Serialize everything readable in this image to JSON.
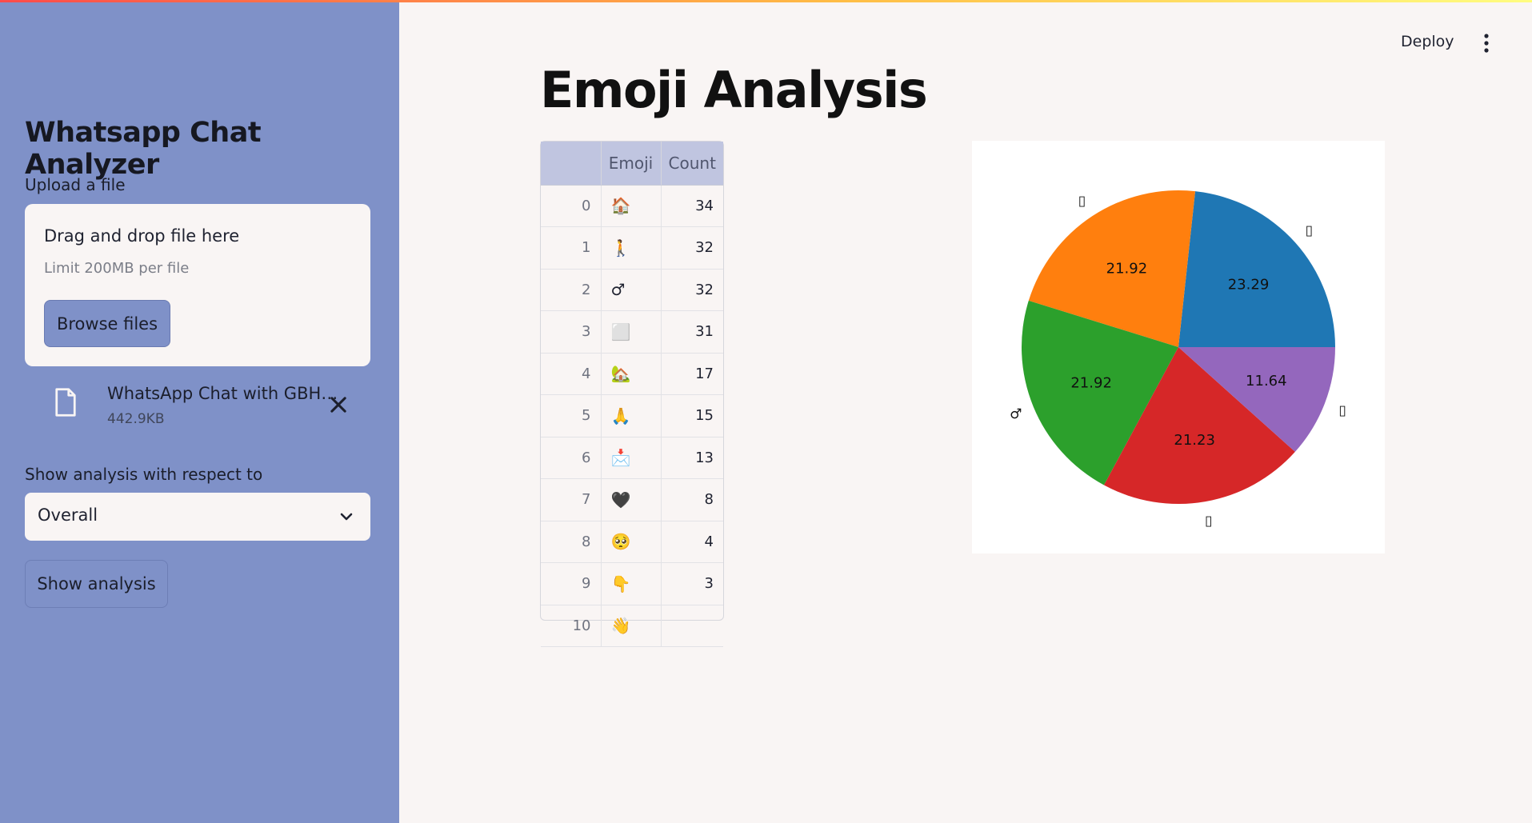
{
  "sidebar": {
    "title": "Whatsapp Chat Analyzer",
    "upload_label": "Upload a file",
    "dropzone_main": "Drag and drop file here",
    "dropzone_sub": "Limit 200MB per file",
    "browse_label": "Browse files",
    "file": {
      "name": "WhatsApp Chat with GBH…",
      "size": "442.9KB"
    },
    "select_label": "Show analysis with respect to",
    "select_value": "Overall",
    "show_button": "Show analysis"
  },
  "header": {
    "deploy": "Deploy"
  },
  "main": {
    "title": "Emoji Analysis",
    "table": {
      "columns": [
        "",
        "Emoji",
        "Count"
      ],
      "rows": [
        {
          "idx": "0",
          "emoji": "🏠",
          "count": "34"
        },
        {
          "idx": "1",
          "emoji": "🚶",
          "count": "32"
        },
        {
          "idx": "2",
          "emoji": "♂",
          "count": "32"
        },
        {
          "idx": "3",
          "emoji": "⬜",
          "count": "31"
        },
        {
          "idx": "4",
          "emoji": "🏡",
          "count": "17"
        },
        {
          "idx": "5",
          "emoji": "🙏",
          "count": "15"
        },
        {
          "idx": "6",
          "emoji": "📩",
          "count": "13"
        },
        {
          "idx": "7",
          "emoji": "🖤",
          "count": "8"
        },
        {
          "idx": "8",
          "emoji": "🥺",
          "count": "4"
        },
        {
          "idx": "9",
          "emoji": "👇",
          "count": "3"
        },
        {
          "idx": "10",
          "emoji": "👋",
          "count": ""
        }
      ]
    }
  },
  "chart_data": {
    "type": "pie",
    "title": "",
    "slices": [
      {
        "label": "▯",
        "value": 23.29,
        "color": "#1f77b4"
      },
      {
        "label": "▯",
        "value": 21.92,
        "color": "#ff7f0e"
      },
      {
        "label": "♂",
        "value": 21.92,
        "color": "#2ca02c"
      },
      {
        "label": "▯",
        "value": 21.23,
        "color": "#d62728"
      },
      {
        "label": "▯",
        "value": 11.64,
        "color": "#9467bd"
      }
    ]
  }
}
